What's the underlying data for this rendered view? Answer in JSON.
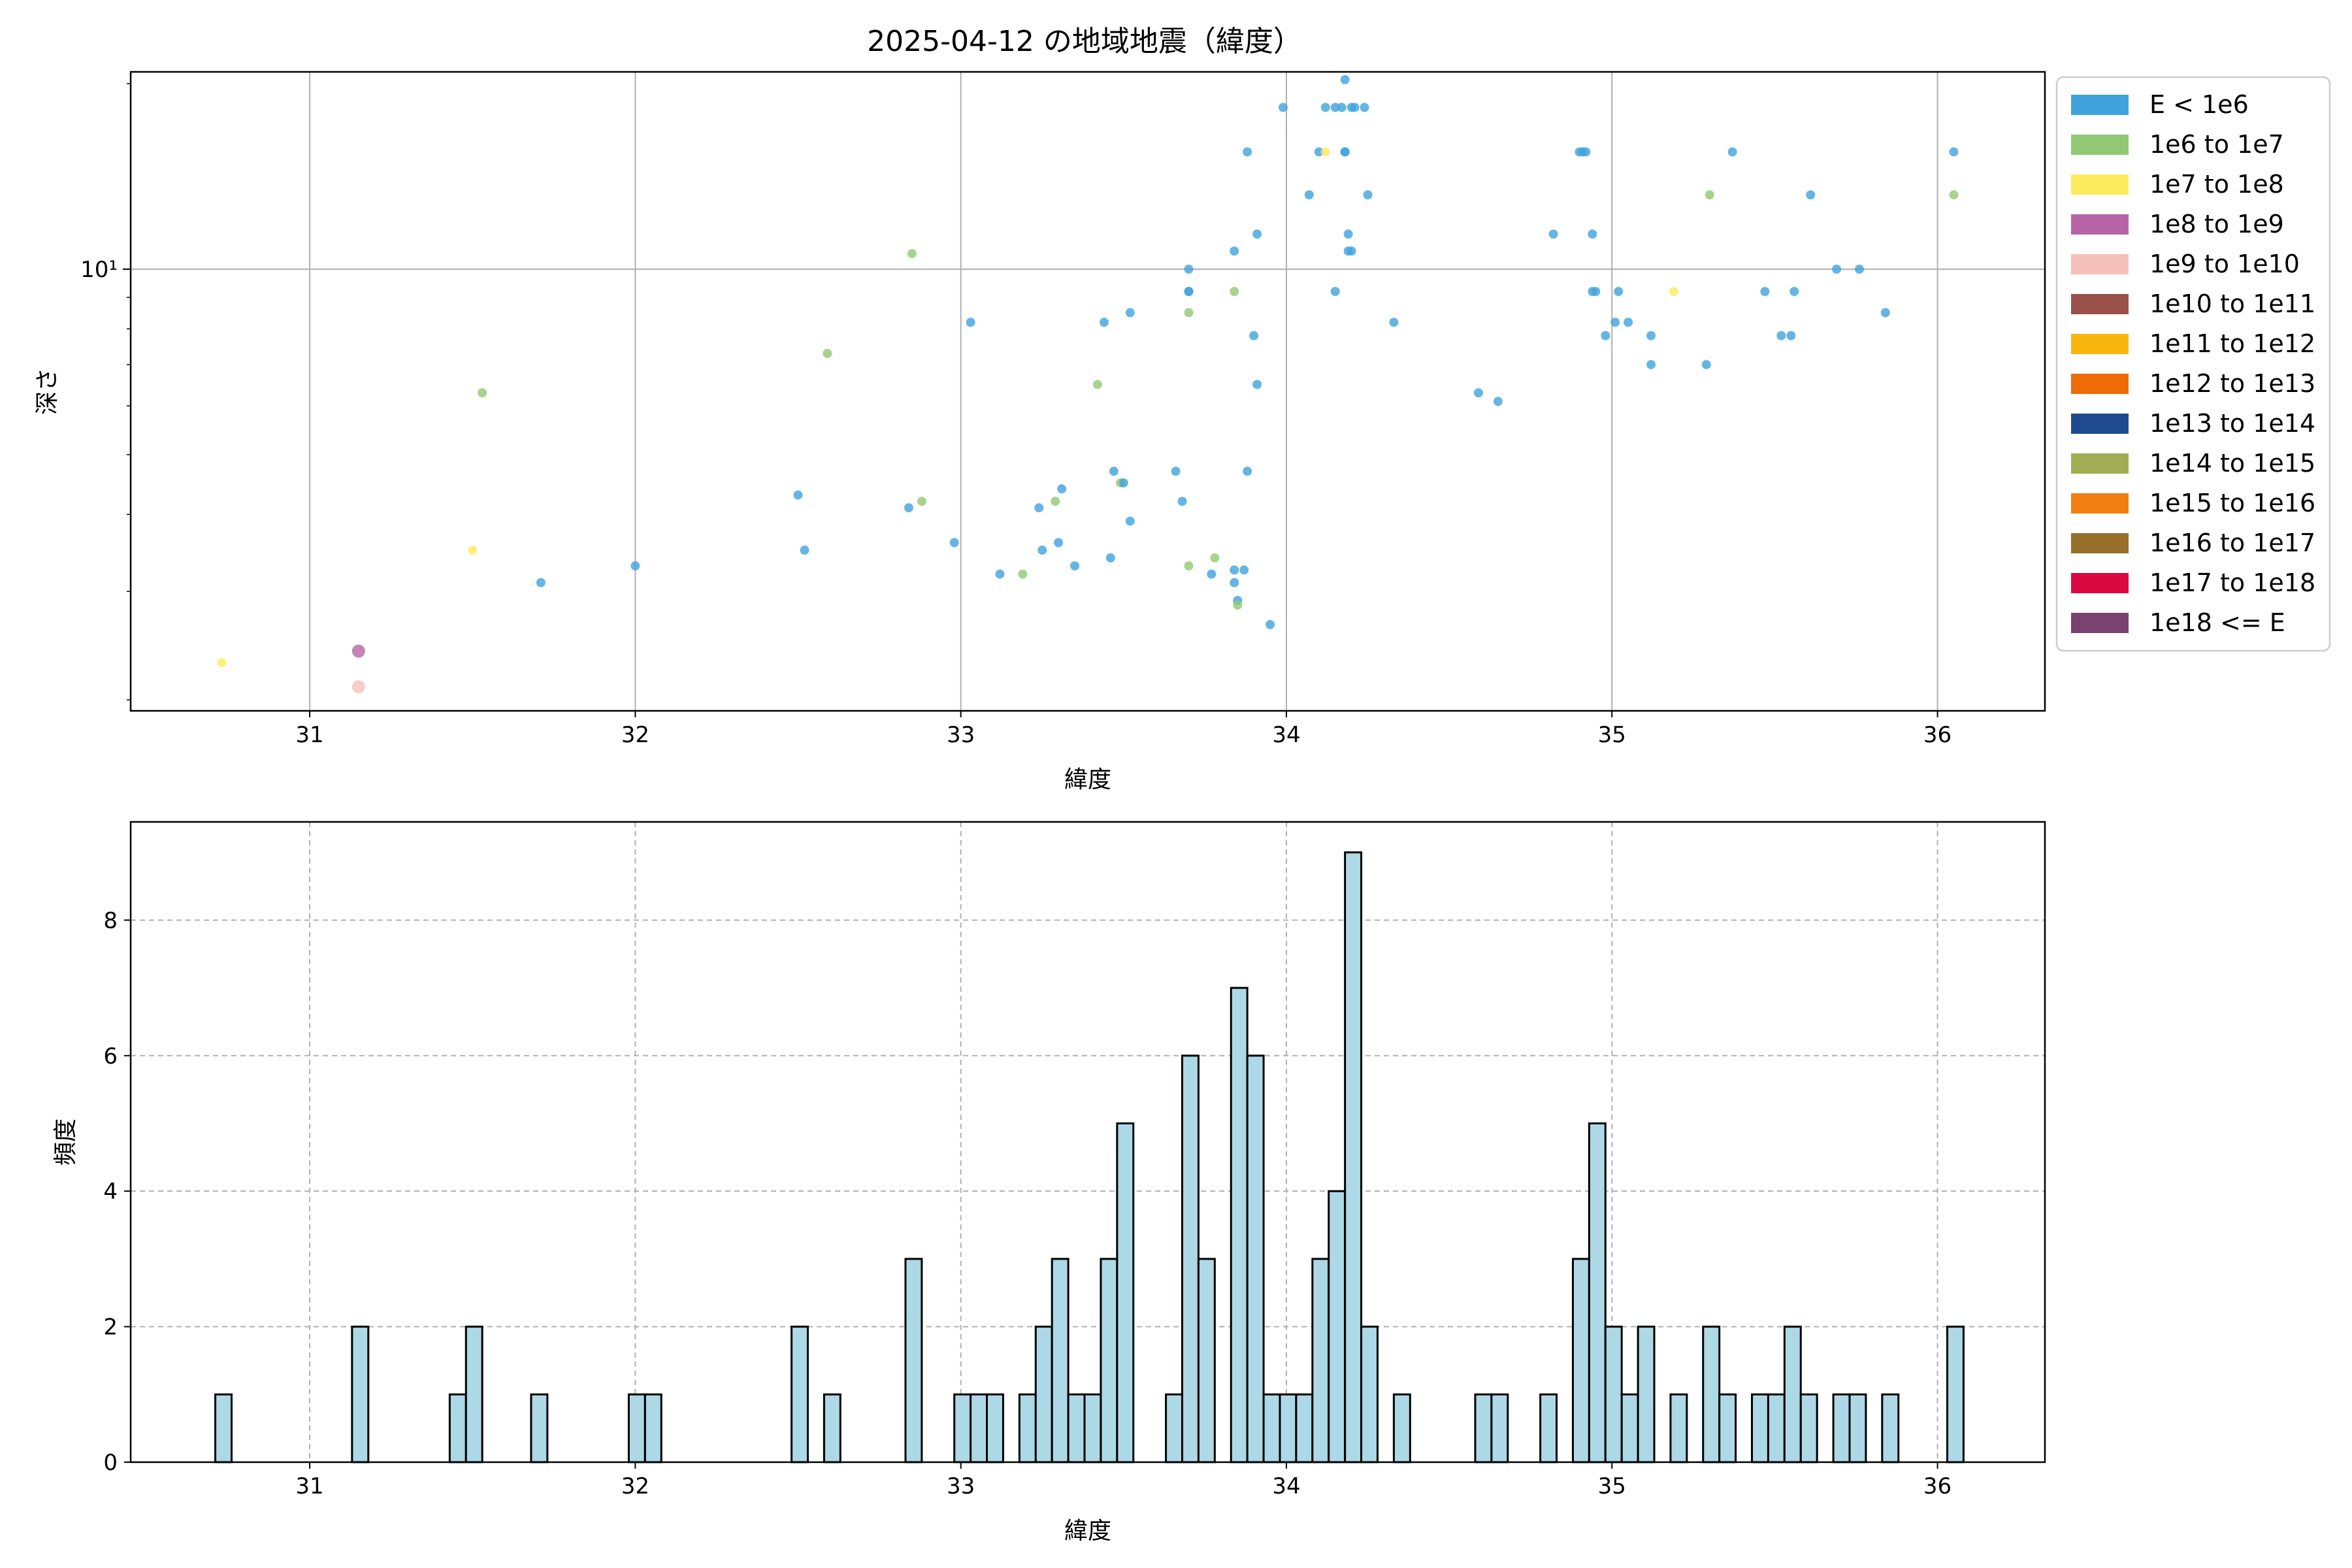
{
  "figure_title": "2025-04-12 の地域地震（緯度）",
  "chart_data": [
    {
      "type": "scatter",
      "xlabel": "緯度",
      "ylabel": "深さ",
      "xlim": [
        30.45,
        36.33
      ],
      "ylim": [
        1.92,
        20.9
      ],
      "yscale": "log",
      "xticks": [
        31,
        32,
        33,
        34,
        35,
        36
      ],
      "yticks": [
        {
          "value": 10,
          "label": "10¹"
        }
      ],
      "grid": true,
      "legend_position": "outside-right",
      "legend": [
        {
          "label": "E < 1e6",
          "color": "#3fa2dd"
        },
        {
          "label": "1e6 to 1e7",
          "color": "#92c873"
        },
        {
          "label": "1e7 to 1e8",
          "color": "#fceb5d"
        },
        {
          "label": "1e8 to 1e9",
          "color": "#b764a7"
        },
        {
          "label": "1e9 to 1e10",
          "color": "#f5c0b9"
        },
        {
          "label": "1e10 to 1e11",
          "color": "#9a5149"
        },
        {
          "label": "1e11 to 1e12",
          "color": "#f8b60e"
        },
        {
          "label": "1e12 to 1e13",
          "color": "#ef6b07"
        },
        {
          "label": "1e13 to 1e14",
          "color": "#1f4a91"
        },
        {
          "label": "1e14 to 1e15",
          "color": "#a0ad52"
        },
        {
          "label": "1e15 to 1e16",
          "color": "#f07f0f"
        },
        {
          "label": "1e16 to 1e17",
          "color": "#976e2a"
        },
        {
          "label": "1e17 to 1e18",
          "color": "#dc0840"
        },
        {
          "label": "1e18 <= E",
          "color": "#7a426e"
        }
      ],
      "points": [
        [
          30.73,
          2.3,
          2
        ],
        [
          31.15,
          2.4,
          3
        ],
        [
          31.15,
          2.1,
          4
        ],
        [
          31.5,
          3.5,
          2
        ],
        [
          31.53,
          6.3,
          1
        ],
        [
          31.71,
          3.1,
          0
        ],
        [
          32.0,
          3.3,
          0
        ],
        [
          32.5,
          4.3,
          0
        ],
        [
          32.52,
          3.5,
          0
        ],
        [
          32.59,
          7.3,
          1
        ],
        [
          32.84,
          4.1,
          0
        ],
        [
          32.85,
          10.6,
          1
        ],
        [
          32.88,
          4.2,
          1
        ],
        [
          32.98,
          3.6,
          0
        ],
        [
          33.03,
          8.2,
          0
        ],
        [
          33.12,
          3.2,
          0
        ],
        [
          33.19,
          3.2,
          1
        ],
        [
          33.24,
          4.1,
          0
        ],
        [
          33.25,
          3.5,
          0
        ],
        [
          33.29,
          4.2,
          1
        ],
        [
          33.3,
          3.6,
          0
        ],
        [
          33.31,
          4.4,
          0
        ],
        [
          33.35,
          3.3,
          0
        ],
        [
          33.42,
          6.5,
          1
        ],
        [
          33.44,
          8.2,
          0
        ],
        [
          33.46,
          3.4,
          0
        ],
        [
          33.47,
          4.7,
          0
        ],
        [
          33.49,
          4.5,
          1
        ],
        [
          33.5,
          4.5,
          0
        ],
        [
          33.52,
          3.9,
          0
        ],
        [
          33.52,
          8.5,
          0
        ],
        [
          33.66,
          4.7,
          0
        ],
        [
          33.68,
          4.2,
          0
        ],
        [
          33.7,
          10.0,
          0
        ],
        [
          33.7,
          9.2,
          0
        ],
        [
          33.7,
          9.2,
          0
        ],
        [
          33.7,
          8.5,
          1
        ],
        [
          33.7,
          3.3,
          1
        ],
        [
          33.77,
          3.2,
          0
        ],
        [
          33.78,
          3.4,
          1
        ],
        [
          33.84,
          3.1,
          0
        ],
        [
          33.84,
          3.25,
          0
        ],
        [
          33.84,
          10.7,
          0
        ],
        [
          33.84,
          9.2,
          1
        ],
        [
          33.85,
          2.9,
          0
        ],
        [
          33.85,
          2.85,
          1
        ],
        [
          33.87,
          3.25,
          0
        ],
        [
          33.88,
          4.7,
          0
        ],
        [
          33.88,
          15.5,
          0
        ],
        [
          33.9,
          7.8,
          0
        ],
        [
          33.91,
          6.5,
          0
        ],
        [
          33.91,
          11.4,
          0
        ],
        [
          33.95,
          2.65,
          0
        ],
        [
          33.99,
          18.3,
          0
        ],
        [
          34.07,
          13.2,
          0
        ],
        [
          34.1,
          15.5,
          0
        ],
        [
          34.12,
          15.5,
          2
        ],
        [
          34.12,
          18.3,
          0
        ],
        [
          34.15,
          18.3,
          0
        ],
        [
          34.15,
          9.2,
          0
        ],
        [
          34.17,
          18.3,
          0
        ],
        [
          34.18,
          20.3,
          0
        ],
        [
          34.18,
          15.5,
          0
        ],
        [
          34.18,
          15.5,
          0
        ],
        [
          34.19,
          11.4,
          0
        ],
        [
          34.19,
          10.7,
          0
        ],
        [
          34.2,
          10.7,
          0
        ],
        [
          34.2,
          18.3,
          0
        ],
        [
          34.21,
          18.3,
          0
        ],
        [
          34.24,
          18.3,
          0
        ],
        [
          34.25,
          13.2,
          0
        ],
        [
          34.33,
          8.2,
          0
        ],
        [
          34.59,
          6.3,
          0
        ],
        [
          34.65,
          6.1,
          0
        ],
        [
          34.82,
          11.4,
          0
        ],
        [
          34.9,
          15.5,
          0
        ],
        [
          34.91,
          15.5,
          0
        ],
        [
          34.92,
          15.5,
          0
        ],
        [
          34.94,
          11.4,
          0
        ],
        [
          34.94,
          9.2,
          0
        ],
        [
          34.95,
          9.2,
          0
        ],
        [
          34.98,
          7.8,
          0
        ],
        [
          35.01,
          8.2,
          0
        ],
        [
          35.02,
          9.2,
          0
        ],
        [
          35.05,
          8.2,
          0
        ],
        [
          35.12,
          7.8,
          0
        ],
        [
          35.12,
          7.0,
          0
        ],
        [
          35.19,
          9.2,
          2
        ],
        [
          35.29,
          7.0,
          0
        ],
        [
          35.3,
          13.2,
          1
        ],
        [
          35.37,
          15.5,
          0
        ],
        [
          35.47,
          9.2,
          0
        ],
        [
          35.52,
          7.8,
          0
        ],
        [
          35.55,
          7.8,
          0
        ],
        [
          35.56,
          9.2,
          0
        ],
        [
          35.61,
          13.2,
          0
        ],
        [
          35.69,
          10.0,
          0
        ],
        [
          35.76,
          10.0,
          0
        ],
        [
          35.84,
          8.5,
          0
        ],
        [
          36.05,
          15.5,
          0
        ],
        [
          36.05,
          13.2,
          1
        ]
      ]
    },
    {
      "type": "bar",
      "xlabel": "緯度",
      "ylabel": "頻度",
      "xlim": [
        30.45,
        36.33
      ],
      "ylim": [
        0,
        9.45
      ],
      "xticks": [
        31,
        32,
        33,
        34,
        35,
        36
      ],
      "yticks": [
        0,
        2,
        4,
        6,
        8
      ],
      "grid": true,
      "bin_width": 0.05,
      "bins": [
        [
          30.71,
          1
        ],
        [
          31.13,
          2
        ],
        [
          31.43,
          1
        ],
        [
          31.48,
          2
        ],
        [
          31.68,
          1
        ],
        [
          31.98,
          1
        ],
        [
          32.03,
          1
        ],
        [
          32.48,
          2
        ],
        [
          32.58,
          1
        ],
        [
          32.83,
          3
        ],
        [
          32.98,
          1
        ],
        [
          33.03,
          1
        ],
        [
          33.08,
          1
        ],
        [
          33.18,
          1
        ],
        [
          33.23,
          2
        ],
        [
          33.28,
          3
        ],
        [
          33.33,
          1
        ],
        [
          33.38,
          1
        ],
        [
          33.43,
          3
        ],
        [
          33.48,
          5
        ],
        [
          33.63,
          1
        ],
        [
          33.68,
          6
        ],
        [
          33.73,
          3
        ],
        [
          33.83,
          7
        ],
        [
          33.88,
          6
        ],
        [
          33.93,
          1
        ],
        [
          33.98,
          1
        ],
        [
          34.03,
          1
        ],
        [
          34.08,
          3
        ],
        [
          34.13,
          4
        ],
        [
          34.18,
          9
        ],
        [
          34.23,
          2
        ],
        [
          34.33,
          1
        ],
        [
          34.58,
          1
        ],
        [
          34.63,
          1
        ],
        [
          34.78,
          1
        ],
        [
          34.88,
          3
        ],
        [
          34.93,
          5
        ],
        [
          34.98,
          2
        ],
        [
          35.03,
          1
        ],
        [
          35.08,
          2
        ],
        [
          35.18,
          1
        ],
        [
          35.28,
          2
        ],
        [
          35.33,
          1
        ],
        [
          35.43,
          1
        ],
        [
          35.48,
          1
        ],
        [
          35.53,
          2
        ],
        [
          35.58,
          1
        ],
        [
          35.68,
          1
        ],
        [
          35.73,
          1
        ],
        [
          35.83,
          1
        ],
        [
          36.03,
          2
        ]
      ],
      "bar_color": "#add8e6",
      "edge_color": "#000000"
    }
  ]
}
